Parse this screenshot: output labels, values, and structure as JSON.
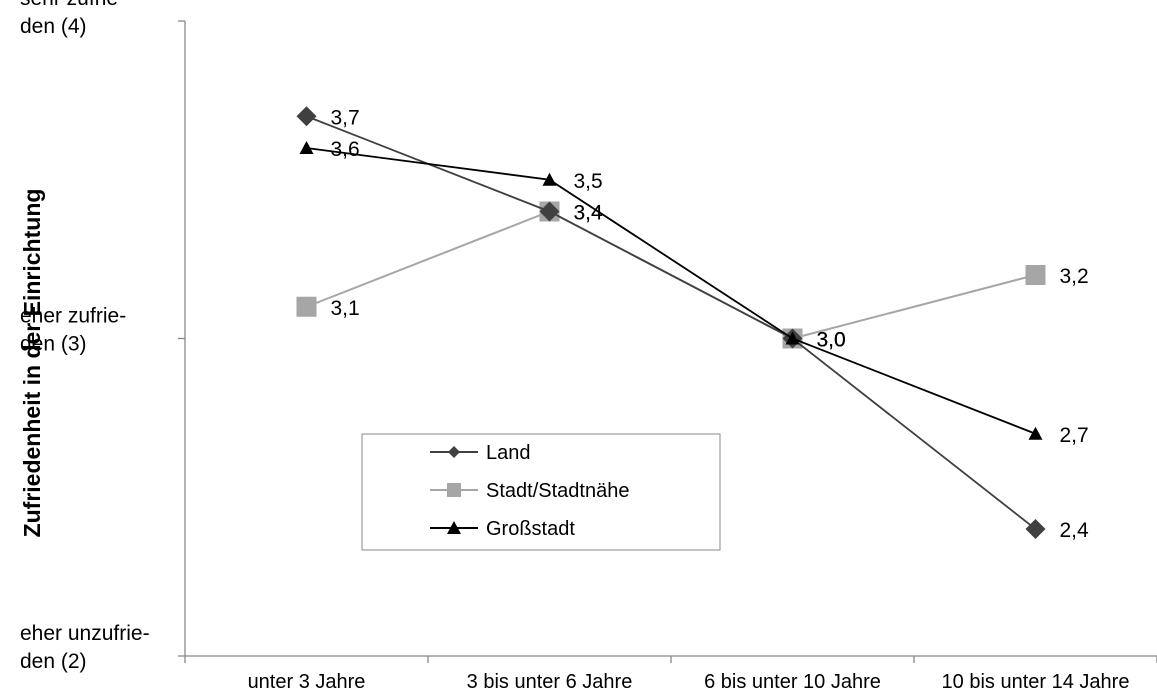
{
  "chart_data": {
    "type": "line",
    "title": "",
    "ylabel": "Zufriedenheit in der Einrichtung",
    "xlabel": "",
    "categories": [
      "unter 3 Jahre",
      "3 bis unter 6 Jahre",
      "6 bis unter 10 Jahre",
      "10 bis unter 14 Jahre"
    ],
    "ylim": [
      2,
      4
    ],
    "y_ticks": [
      {
        "value": 4,
        "lines": [
          "sehr  zufrie-",
          "den (4)"
        ]
      },
      {
        "value": 3,
        "lines": [
          "eher zufrie-",
          "den (3)"
        ]
      },
      {
        "value": 2,
        "lines": [
          "eher unzufrie-",
          "den (2)"
        ]
      }
    ],
    "series": [
      {
        "name": "Land",
        "marker": "diamond",
        "color": "#404040",
        "values": [
          3.7,
          3.4,
          3.0,
          2.4
        ],
        "labels": [
          "3,7",
          "3,4",
          "3,0",
          "2,4"
        ]
      },
      {
        "name": "Stadt/Stadtnähe",
        "marker": "square",
        "color": "#a6a6a6",
        "values": [
          3.1,
          3.4,
          3.0,
          3.2
        ],
        "labels": [
          "3,1",
          "3,4",
          "3,0",
          "3,2"
        ]
      },
      {
        "name": "Großstadt",
        "marker": "triangle",
        "color": "#000000",
        "values": [
          3.6,
          3.5,
          3.0,
          2.7
        ],
        "labels": [
          "3,6",
          "3,5",
          "3,0",
          "2,7"
        ]
      }
    ],
    "legend": {
      "placement": "center-left",
      "entries": [
        "Land",
        "Stadt/Stadtnähe",
        "Großstadt"
      ]
    },
    "grid": false
  }
}
